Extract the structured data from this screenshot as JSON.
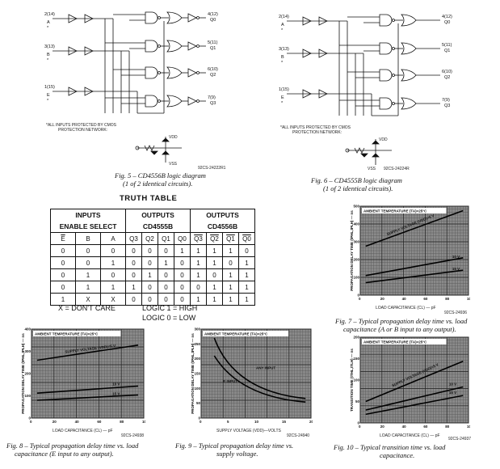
{
  "fig5": {
    "inputs": [
      {
        "pin": "2(14)",
        "name": "A",
        "mark": "*"
      },
      {
        "pin": "3(13)",
        "name": "B",
        "mark": "*"
      },
      {
        "pin": "1(15)",
        "name": "E",
        "mark": "*"
      }
    ],
    "outputs": [
      {
        "pin": "4(12)",
        "name": "Q0"
      },
      {
        "pin": "5(11)",
        "name": "Q1"
      },
      {
        "pin": "6(10)",
        "name": "Q2"
      },
      {
        "pin": "7(9)",
        "name": "Q3"
      }
    ],
    "protect_note_1": "*ALL INPUTS PROTECTED BY CMOS",
    "protect_note_2": "PROTECTION NETWORK:",
    "vdd": "VDD",
    "vss": "VSS",
    "code": "92CS-24222R1",
    "caption_1": "Fig. 5 – CD4556B logic diagram",
    "caption_2": "(1 of 2 identical circuits)."
  },
  "fig6": {
    "inputs": [
      {
        "pin": "2(14)",
        "name": "A",
        "mark": "*"
      },
      {
        "pin": "3(13)",
        "name": "B",
        "mark": "*"
      },
      {
        "pin": "1(15)",
        "name": "E",
        "mark": "*"
      }
    ],
    "outputs": [
      {
        "pin": "4(12)",
        "name": "Q0"
      },
      {
        "pin": "5(11)",
        "name": "Q1"
      },
      {
        "pin": "6(10)",
        "name": "Q2"
      },
      {
        "pin": "7(9)",
        "name": "Q3"
      }
    ],
    "protect_note_1": "*ALL INPUTS PROTECTED BY CMOS",
    "protect_note_2": "PROTECTION NETWORK:",
    "vdd": "VDD",
    "vss": "VSS",
    "code": "92CS-24224R",
    "caption_1": "Fig. 6 – CD4555B logic diagram",
    "caption_2": "(1 of 2 identical circuits)."
  },
  "truth_table": {
    "title": "TRUTH TABLE",
    "inputs_label": "INPUTS",
    "enable_select": "ENABLE  SELECT",
    "outputs_label": "OUTPUTS",
    "cd4555b": "CD4555B",
    "cd4556b": "CD4556B",
    "col_headers": [
      "E",
      "B",
      "A",
      "Q3",
      "Q2",
      "Q1",
      "Q0",
      "Q3",
      "Q2",
      "Q1",
      "Q0"
    ],
    "rows": [
      [
        "0",
        "0",
        "0",
        "0",
        "0",
        "0",
        "1",
        "1",
        "1",
        "1",
        "0"
      ],
      [
        "0",
        "0",
        "1",
        "0",
        "0",
        "1",
        "0",
        "1",
        "1",
        "0",
        "1"
      ],
      [
        "0",
        "1",
        "0",
        "0",
        "1",
        "0",
        "0",
        "1",
        "0",
        "1",
        "1"
      ],
      [
        "0",
        "1",
        "1",
        "1",
        "0",
        "0",
        "0",
        "0",
        "1",
        "1",
        "1"
      ],
      [
        "1",
        "X",
        "X",
        "0",
        "0",
        "0",
        "0",
        "1",
        "1",
        "1",
        "1"
      ]
    ],
    "dont_care": "X = DON'T CARE",
    "logic1": "LOGIC 1 = HIGH",
    "logic0": "LOGIC 0 = LOW"
  },
  "fig7": {
    "ambient": "AMBIENT TEMPERATURE (TA)=25°C",
    "supply": "SUPPLY VOLTAGE (VDD)=5 V",
    "curve2": "10 V",
    "curve3": "15 V",
    "ylabel": "PROPAGATION DELAY TIME (tPHL,tPLH) — ns",
    "xlabel": "LOAD CAPACITANCE (CL) — pF",
    "xticks": [
      "0",
      "20",
      "40",
      "60",
      "80",
      "100"
    ],
    "yticks": [
      "0",
      "100",
      "200",
      "300",
      "400",
      "500"
    ],
    "code": "92CS-24936",
    "caption_1": "Fig. 7 – Typical propagation delay time vs. load",
    "caption_2": "capacitance (A or B input to any output)."
  },
  "fig8": {
    "ambient": "AMBIENT TEMPERATURE (TA)=25°C",
    "supply": "SUPPLY VOLTAGE (VDD)=5 V",
    "curve2": "10 V",
    "curve3": "15 V",
    "ylabel": "PROPAGATION DELAY TIME (tPHL,tPLH) — ns",
    "xlabel": "LOAD CAPACITANCE (CL) — pF",
    "xticks": [
      "0",
      "20",
      "40",
      "60",
      "80",
      "100"
    ],
    "yticks": [
      "0",
      "100",
      "200",
      "300",
      "400"
    ],
    "code": "92CS-24938",
    "caption_1": "Fig. 8 – Typical propagation delay time vs. load",
    "caption_2": "capacitance (E input to any output)."
  },
  "fig9": {
    "ambient": "AMBIENT TEMPERATURE (TA)=25°C",
    "curve1": "ANY INPUT",
    "curve2": "E INPUT",
    "ylabel": "PROPAGATION DELAY TIME (tPHL,tPLH) — ns",
    "xlabel": "SUPPLY VOLTAGE (VDD)—VOLTS",
    "xticks": [
      "0",
      "5",
      "10",
      "15",
      "20"
    ],
    "yticks": [
      "0",
      "50",
      "100",
      "150",
      "200",
      "250",
      "300"
    ],
    "code": "92CS-24940",
    "caption_1": "Fig. 9 – Typical propagation delay time vs.",
    "caption_2": "supply voltage."
  },
  "fig10": {
    "ambient": "AMBIENT TEMPERATURE (TA)=25°C",
    "supply": "SUPPLY VOLTAGE (VDD)=5 V",
    "curve2": "10 V",
    "curve3": "15 V",
    "ylabel": "TRANSITION TIME (tTHL,tTLH) — ns",
    "xlabel": "LOAD CAPACITANCE (CL) — pF",
    "xticks": [
      "0",
      "20",
      "40",
      "60",
      "80",
      "100"
    ],
    "yticks": [
      "0",
      "50",
      "100",
      "150",
      "200"
    ],
    "code": "92CS-24937",
    "caption_1": "Fig. 10 – Typical transition time vs. load",
    "caption_2": "capacitance."
  }
}
